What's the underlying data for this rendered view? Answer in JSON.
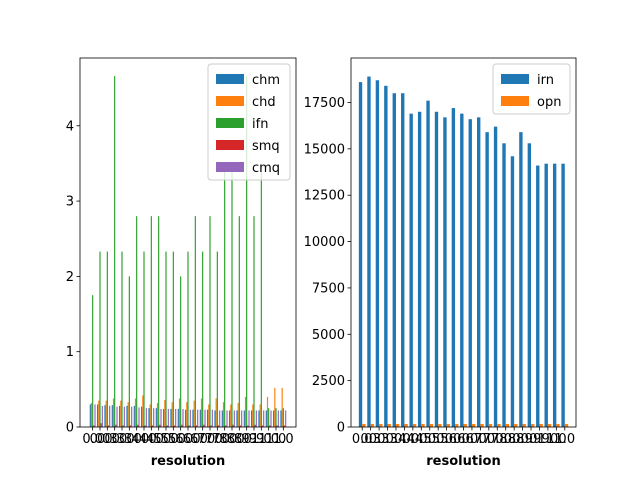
{
  "chart_data": [
    {
      "type": "bar",
      "xlabel": "resolution",
      "ylabel": "",
      "ylim": [
        0,
        4.9
      ],
      "yticks": [
        0,
        1,
        2,
        3,
        4
      ],
      "categories": [
        "0.0",
        "0.0",
        "0.3",
        "0.3",
        "0.3",
        "0.4",
        "0.4",
        "0.4",
        "0.5",
        "0.5",
        "0.5",
        "0.6",
        "0.6",
        "0.6",
        "0.7",
        "0.7",
        "0.7",
        "0.8",
        "0.8",
        "0.8",
        "0.9",
        "0.9",
        "0.9",
        "1.0",
        "1.0",
        "1.0",
        "1.0"
      ],
      "legend_position": "top-right",
      "series": [
        {
          "name": "chm",
          "color": "#1f77b4",
          "values": [
            0.3,
            0.3,
            0.29,
            0.29,
            0.28,
            0.28,
            0.28,
            0.27,
            0.25,
            0.25,
            0.24,
            0.24,
            0.24,
            0.23,
            0.23,
            0.23,
            0.23,
            0.22,
            0.22,
            0.22,
            0.22,
            0.22,
            0.22,
            0.22,
            0.22,
            0.22,
            0.22
          ]
        },
        {
          "name": "chd",
          "color": "#ff7f0e",
          "values": [
            0.32,
            0.35,
            0.35,
            0.38,
            0.35,
            0.33,
            0.38,
            0.42,
            0.3,
            0.32,
            0.36,
            0.33,
            0.38,
            0.33,
            0.35,
            0.38,
            0.3,
            0.38,
            0.33,
            0.3,
            0.32,
            0.4,
            0.3,
            0.3,
            0.4,
            0.52,
            0.52
          ]
        },
        {
          "name": "ifn",
          "color": "#2ca02c",
          "values": [
            1.75,
            2.33,
            2.33,
            4.66,
            2.33,
            2.0,
            2.8,
            2.33,
            2.8,
            2.8,
            2.33,
            2.33,
            2.0,
            2.33,
            2.8,
            2.33,
            2.8,
            2.33,
            3.5,
            3.5,
            2.8,
            4.66,
            2.8,
            3.5,
            0.25,
            0.25,
            0.25
          ]
        },
        {
          "name": "smq",
          "color": "#d62728",
          "values": [
            0.02,
            0.05,
            0.02,
            0.03,
            0.02,
            0.02,
            0.03,
            0.02,
            0.02,
            0.03,
            0.02,
            0.02,
            0.03,
            0.02,
            0.02,
            0.03,
            0.02,
            0.02,
            0.02,
            0.03,
            0.02,
            0.02,
            0.03,
            0.02,
            0.02,
            0.02,
            0.02
          ]
        },
        {
          "name": "cmq",
          "color": "#9467bd",
          "values": [
            0.3,
            0.28,
            0.28,
            0.27,
            0.27,
            0.27,
            0.26,
            0.25,
            0.25,
            0.24,
            0.24,
            0.24,
            0.24,
            0.23,
            0.23,
            0.23,
            0.23,
            0.22,
            0.22,
            0.22,
            0.22,
            0.22,
            0.22,
            0.22,
            0.22,
            0.22,
            0.22
          ]
        }
      ]
    },
    {
      "type": "bar",
      "xlabel": "resolution",
      "ylabel": "",
      "ylim": [
        0,
        19900
      ],
      "yticks": [
        0,
        2500,
        5000,
        7500,
        10000,
        12500,
        15000,
        17500
      ],
      "categories": [
        "0.0",
        "0.3",
        "0.3",
        "0.3",
        "0.4",
        "0.4",
        "0.4",
        "0.5",
        "0.5",
        "0.5",
        "0.6",
        "0.6",
        "0.6",
        "0.7",
        "0.7",
        "0.7",
        "0.8",
        "0.8",
        "0.8",
        "0.9",
        "0.9",
        "0.9",
        "1.0",
        "1.0",
        "1.0"
      ],
      "legend_position": "top-right",
      "series": [
        {
          "name": "irn",
          "color": "#1f77b4",
          "values": [
            18600,
            18900,
            18700,
            18400,
            18000,
            18000,
            16900,
            17000,
            17600,
            17000,
            16700,
            17200,
            16900,
            16600,
            16700,
            15900,
            16200,
            15300,
            14600,
            15900,
            15300,
            14100,
            14200,
            14200,
            14200
          ]
        },
        {
          "name": "opn",
          "color": "#ff7f0e",
          "values": [
            160,
            160,
            160,
            160,
            160,
            160,
            160,
            160,
            160,
            160,
            160,
            160,
            160,
            160,
            160,
            160,
            160,
            160,
            160,
            160,
            160,
            160,
            160,
            160,
            160
          ]
        }
      ]
    }
  ]
}
